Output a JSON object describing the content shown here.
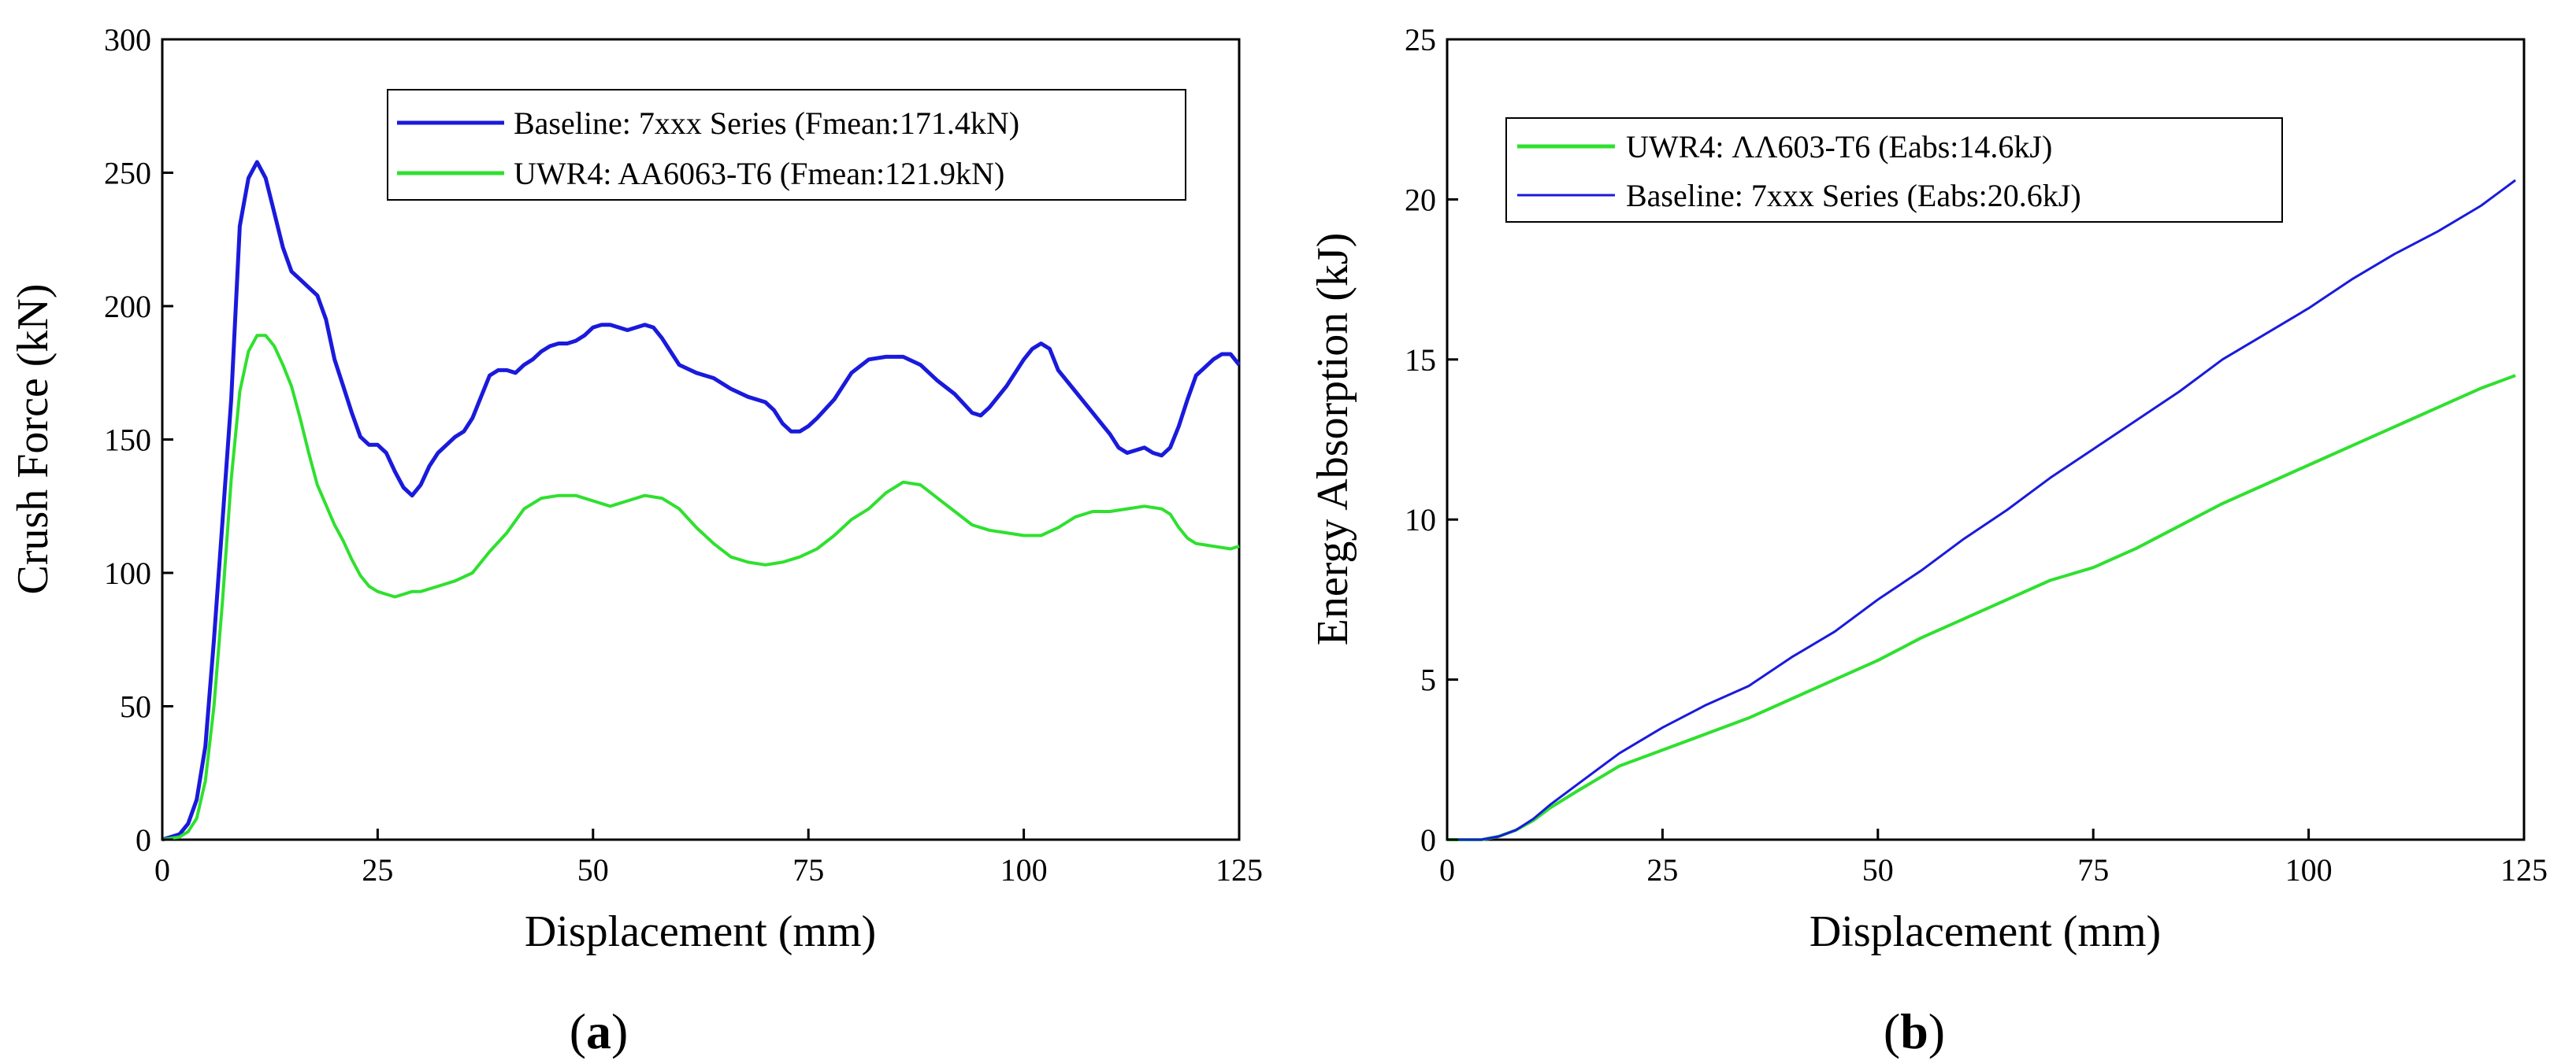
{
  "chart_data": [
    {
      "type": "line",
      "panel_label": "a",
      "title": "",
      "xlabel": "Displacement (mm)",
      "ylabel": "Crush Force (kN)",
      "xlim": [
        0,
        125
      ],
      "ylim": [
        0,
        300
      ],
      "x_ticks": [
        0,
        25,
        50,
        75,
        100,
        125
      ],
      "y_ticks": [
        0,
        50,
        100,
        150,
        200,
        250,
        300
      ],
      "grid": false,
      "legend_position": "top-right",
      "series": [
        {
          "name": "Baseline: 7xxx Series (Fmean:171.4kN)",
          "color": "#1a1adc",
          "points": [
            [
              0,
              0
            ],
            [
              2,
              2
            ],
            [
              3,
              6
            ],
            [
              4,
              15
            ],
            [
              5,
              35
            ],
            [
              6,
              75
            ],
            [
              7,
              120
            ],
            [
              8,
              165
            ],
            [
              9,
              230
            ],
            [
              10,
              248
            ],
            [
              11,
              254
            ],
            [
              12,
              248
            ],
            [
              13,
              235
            ],
            [
              14,
              222
            ],
            [
              15,
              213
            ],
            [
              16,
              210
            ],
            [
              17,
              207
            ],
            [
              18,
              204
            ],
            [
              19,
              195
            ],
            [
              20,
              180
            ],
            [
              21,
              170
            ],
            [
              22,
              160
            ],
            [
              23,
              151
            ],
            [
              24,
              148
            ],
            [
              25,
              148
            ],
            [
              26,
              145
            ],
            [
              27,
              138
            ],
            [
              28,
              132
            ],
            [
              29,
              129
            ],
            [
              30,
              133
            ],
            [
              31,
              140
            ],
            [
              32,
              145
            ],
            [
              33,
              148
            ],
            [
              34,
              151
            ],
            [
              35,
              153
            ],
            [
              36,
              158
            ],
            [
              37,
              166
            ],
            [
              38,
              174
            ],
            [
              39,
              176
            ],
            [
              40,
              176
            ],
            [
              41,
              175
            ],
            [
              42,
              178
            ],
            [
              43,
              180
            ],
            [
              44,
              183
            ],
            [
              45,
              185
            ],
            [
              46,
              186
            ],
            [
              47,
              186
            ],
            [
              48,
              187
            ],
            [
              49,
              189
            ],
            [
              50,
              192
            ],
            [
              51,
              193
            ],
            [
              52,
              193
            ],
            [
              53,
              192
            ],
            [
              54,
              191
            ],
            [
              55,
              192
            ],
            [
              56,
              193
            ],
            [
              57,
              192
            ],
            [
              58,
              188
            ],
            [
              59,
              183
            ],
            [
              60,
              178
            ],
            [
              62,
              175
            ],
            [
              64,
              173
            ],
            [
              66,
              169
            ],
            [
              68,
              166
            ],
            [
              70,
              164
            ],
            [
              71,
              161
            ],
            [
              72,
              156
            ],
            [
              73,
              153
            ],
            [
              74,
              153
            ],
            [
              75,
              155
            ],
            [
              76,
              158
            ],
            [
              78,
              165
            ],
            [
              80,
              175
            ],
            [
              82,
              180
            ],
            [
              84,
              181
            ],
            [
              86,
              181
            ],
            [
              88,
              178
            ],
            [
              90,
              172
            ],
            [
              92,
              167
            ],
            [
              94,
              160
            ],
            [
              95,
              159
            ],
            [
              96,
              162
            ],
            [
              98,
              170
            ],
            [
              100,
              180
            ],
            [
              101,
              184
            ],
            [
              102,
              186
            ],
            [
              103,
              184
            ],
            [
              104,
              176
            ],
            [
              106,
              168
            ],
            [
              108,
              160
            ],
            [
              110,
              152
            ],
            [
              111,
              147
            ],
            [
              112,
              145
            ],
            [
              113,
              146
            ],
            [
              114,
              147
            ],
            [
              115,
              145
            ],
            [
              116,
              144
            ],
            [
              117,
              147
            ],
            [
              118,
              155
            ],
            [
              119,
              165
            ],
            [
              120,
              174
            ],
            [
              121,
              177
            ],
            [
              122,
              180
            ],
            [
              123,
              182
            ],
            [
              124,
              182
            ],
            [
              125,
              178
            ]
          ]
        },
        {
          "name": "UWR4: AA6063-T6 (Fmean:121.9kN)",
          "color": "#2fe02f",
          "points": [
            [
              0,
              0
            ],
            [
              2,
              1
            ],
            [
              3,
              3
            ],
            [
              4,
              8
            ],
            [
              5,
              22
            ],
            [
              6,
              50
            ],
            [
              7,
              90
            ],
            [
              8,
              135
            ],
            [
              9,
              168
            ],
            [
              10,
              183
            ],
            [
              11,
              189
            ],
            [
              12,
              189
            ],
            [
              13,
              185
            ],
            [
              14,
              178
            ],
            [
              15,
              170
            ],
            [
              16,
              158
            ],
            [
              17,
              145
            ],
            [
              18,
              133
            ],
            [
              20,
              118
            ],
            [
              21,
              112
            ],
            [
              22,
              105
            ],
            [
              23,
              99
            ],
            [
              24,
              95
            ],
            [
              25,
              93
            ],
            [
              26,
              92
            ],
            [
              27,
              91
            ],
            [
              28,
              92
            ],
            [
              29,
              93
            ],
            [
              30,
              93
            ],
            [
              32,
              95
            ],
            [
              34,
              97
            ],
            [
              36,
              100
            ],
            [
              38,
              108
            ],
            [
              40,
              115
            ],
            [
              42,
              124
            ],
            [
              44,
              128
            ],
            [
              46,
              129
            ],
            [
              48,
              129
            ],
            [
              50,
              127
            ],
            [
              52,
              125
            ],
            [
              54,
              127
            ],
            [
              56,
              129
            ],
            [
              58,
              128
            ],
            [
              60,
              124
            ],
            [
              62,
              117
            ],
            [
              64,
              111
            ],
            [
              66,
              106
            ],
            [
              68,
              104
            ],
            [
              70,
              103
            ],
            [
              72,
              104
            ],
            [
              74,
              106
            ],
            [
              76,
              109
            ],
            [
              78,
              114
            ],
            [
              80,
              120
            ],
            [
              82,
              124
            ],
            [
              84,
              130
            ],
            [
              86,
              134
            ],
            [
              88,
              133
            ],
            [
              90,
              128
            ],
            [
              92,
              123
            ],
            [
              94,
              118
            ],
            [
              96,
              116
            ],
            [
              98,
              115
            ],
            [
              100,
              114
            ],
            [
              102,
              114
            ],
            [
              104,
              117
            ],
            [
              106,
              121
            ],
            [
              108,
              123
            ],
            [
              110,
              123
            ],
            [
              112,
              124
            ],
            [
              114,
              125
            ],
            [
              116,
              124
            ],
            [
              117,
              122
            ],
            [
              118,
              117
            ],
            [
              119,
              113
            ],
            [
              120,
              111
            ],
            [
              122,
              110
            ],
            [
              124,
              109
            ],
            [
              125,
              110
            ]
          ]
        }
      ]
    },
    {
      "type": "line",
      "panel_label": "b",
      "title": "",
      "xlabel": "Displacement (mm)",
      "ylabel": "Energy Absorption (kJ)",
      "xlim": [
        0,
        125
      ],
      "ylim": [
        0,
        25
      ],
      "x_ticks": [
        0,
        25,
        50,
        75,
        100,
        125
      ],
      "y_ticks": [
        0,
        5,
        10,
        15,
        20,
        25
      ],
      "grid": false,
      "legend_position": "top-left",
      "series": [
        {
          "name": "UWR4: ΛΛ603-T6 (Eabs:14.6kJ)",
          "color": "#2fe02f",
          "points": [
            [
              0,
              0
            ],
            [
              4,
              0
            ],
            [
              6,
              0.1
            ],
            [
              8,
              0.3
            ],
            [
              10,
              0.6
            ],
            [
              12,
              1.0
            ],
            [
              15,
              1.5
            ],
            [
              20,
              2.3
            ],
            [
              25,
              2.8
            ],
            [
              30,
              3.3
            ],
            [
              35,
              3.8
            ],
            [
              40,
              4.4
            ],
            [
              45,
              5.0
            ],
            [
              50,
              5.6
            ],
            [
              55,
              6.3
            ],
            [
              60,
              6.9
            ],
            [
              65,
              7.5
            ],
            [
              70,
              8.1
            ],
            [
              75,
              8.5
            ],
            [
              80,
              9.1
            ],
            [
              85,
              9.8
            ],
            [
              90,
              10.5
            ],
            [
              95,
              11.1
            ],
            [
              100,
              11.7
            ],
            [
              105,
              12.3
            ],
            [
              110,
              12.9
            ],
            [
              115,
              13.5
            ],
            [
              120,
              14.1
            ],
            [
              124,
              14.5
            ]
          ]
        },
        {
          "name": "Baseline: 7xxx Series (Eabs:20.6kJ)",
          "color": "#1a1adc",
          "points": [
            [
              0,
              0
            ],
            [
              4,
              0
            ],
            [
              6,
              0.1
            ],
            [
              8,
              0.3
            ],
            [
              10,
              0.65
            ],
            [
              12,
              1.1
            ],
            [
              15,
              1.7
            ],
            [
              20,
              2.7
            ],
            [
              25,
              3.5
            ],
            [
              30,
              4.2
            ],
            [
              35,
              4.8
            ],
            [
              40,
              5.7
            ],
            [
              45,
              6.5
            ],
            [
              50,
              7.5
            ],
            [
              55,
              8.4
            ],
            [
              60,
              9.4
            ],
            [
              65,
              10.3
            ],
            [
              70,
              11.3
            ],
            [
              75,
              12.2
            ],
            [
              80,
              13.1
            ],
            [
              85,
              14.0
            ],
            [
              90,
              15.0
            ],
            [
              95,
              15.8
            ],
            [
              100,
              16.6
            ],
            [
              105,
              17.5
            ],
            [
              110,
              18.3
            ],
            [
              115,
              19.0
            ],
            [
              120,
              19.8
            ],
            [
              124,
              20.6
            ]
          ]
        }
      ]
    }
  ]
}
